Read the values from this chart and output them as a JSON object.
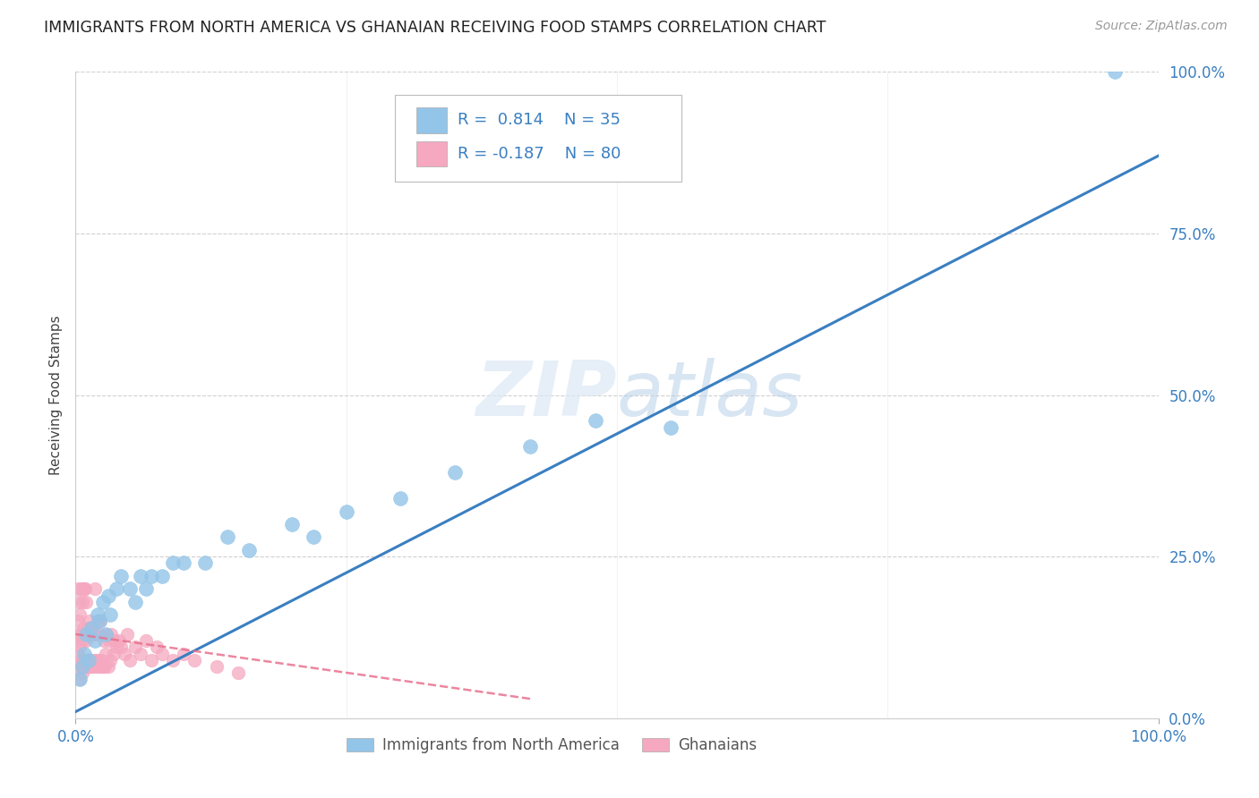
{
  "title": "IMMIGRANTS FROM NORTH AMERICA VS GHANAIAN RECEIVING FOOD STAMPS CORRELATION CHART",
  "source": "Source: ZipAtlas.com",
  "ylabel": "Receiving Food Stamps",
  "xlim": [
    0.0,
    1.0
  ],
  "ylim": [
    0.0,
    1.0
  ],
  "xticks": [
    0.0,
    1.0
  ],
  "yticks": [
    0.0,
    0.25,
    0.5,
    0.75,
    1.0
  ],
  "xtick_labels": [
    "0.0%",
    "100.0%"
  ],
  "ytick_labels": [
    "0.0%",
    "25.0%",
    "50.0%",
    "75.0%",
    "100.0%"
  ],
  "blue_color": "#93c5e8",
  "pink_color": "#f5a8c0",
  "blue_line_color": "#3a7fc1",
  "pink_line_color": "#e8718e",
  "legend_label_blue": "Immigrants from North America",
  "legend_label_pink": "Ghanaians",
  "watermark": "ZIPatlas",
  "background_color": "#ffffff",
  "grid_color": "#d0d0d0",
  "blue_scatter_x": [
    0.004,
    0.006,
    0.008,
    0.01,
    0.012,
    0.015,
    0.018,
    0.02,
    0.022,
    0.025,
    0.028,
    0.03,
    0.032,
    0.038,
    0.042,
    0.05,
    0.055,
    0.06,
    0.065,
    0.07,
    0.08,
    0.09,
    0.1,
    0.12,
    0.14,
    0.16,
    0.2,
    0.22,
    0.25,
    0.3,
    0.35,
    0.42,
    0.48,
    0.55,
    0.96
  ],
  "blue_scatter_y": [
    0.06,
    0.08,
    0.1,
    0.13,
    0.09,
    0.14,
    0.12,
    0.16,
    0.15,
    0.18,
    0.13,
    0.19,
    0.16,
    0.2,
    0.22,
    0.2,
    0.18,
    0.22,
    0.2,
    0.22,
    0.22,
    0.24,
    0.24,
    0.24,
    0.28,
    0.26,
    0.3,
    0.28,
    0.32,
    0.34,
    0.38,
    0.42,
    0.46,
    0.45,
    1.0
  ],
  "pink_scatter_x": [
    0.001,
    0.001,
    0.002,
    0.002,
    0.002,
    0.003,
    0.003,
    0.003,
    0.004,
    0.004,
    0.004,
    0.005,
    0.005,
    0.005,
    0.006,
    0.006,
    0.006,
    0.007,
    0.007,
    0.007,
    0.008,
    0.008,
    0.008,
    0.009,
    0.009,
    0.009,
    0.01,
    0.01,
    0.01,
    0.011,
    0.011,
    0.012,
    0.012,
    0.013,
    0.013,
    0.014,
    0.014,
    0.015,
    0.015,
    0.016,
    0.016,
    0.017,
    0.018,
    0.018,
    0.019,
    0.02,
    0.02,
    0.021,
    0.022,
    0.023,
    0.023,
    0.024,
    0.025,
    0.026,
    0.027,
    0.028,
    0.029,
    0.03,
    0.031,
    0.032,
    0.033,
    0.035,
    0.036,
    0.038,
    0.04,
    0.042,
    0.045,
    0.048,
    0.05,
    0.055,
    0.06,
    0.065,
    0.07,
    0.075,
    0.08,
    0.09,
    0.1,
    0.11,
    0.13,
    0.15
  ],
  "pink_scatter_y": [
    0.08,
    0.12,
    0.1,
    0.15,
    0.2,
    0.08,
    0.13,
    0.18,
    0.06,
    0.11,
    0.16,
    0.09,
    0.13,
    0.2,
    0.07,
    0.12,
    0.18,
    0.09,
    0.14,
    0.2,
    0.08,
    0.13,
    0.2,
    0.08,
    0.13,
    0.2,
    0.08,
    0.12,
    0.18,
    0.09,
    0.14,
    0.08,
    0.13,
    0.09,
    0.15,
    0.08,
    0.13,
    0.08,
    0.13,
    0.09,
    0.14,
    0.08,
    0.13,
    0.2,
    0.09,
    0.08,
    0.15,
    0.09,
    0.13,
    0.08,
    0.15,
    0.09,
    0.08,
    0.12,
    0.08,
    0.1,
    0.13,
    0.08,
    0.12,
    0.09,
    0.13,
    0.1,
    0.12,
    0.11,
    0.12,
    0.11,
    0.1,
    0.13,
    0.09,
    0.11,
    0.1,
    0.12,
    0.09,
    0.11,
    0.1,
    0.09,
    0.1,
    0.09,
    0.08,
    0.07
  ],
  "blue_line_x": [
    0.0,
    1.0
  ],
  "blue_line_y": [
    0.01,
    0.87
  ],
  "pink_line_x": [
    0.0,
    0.42
  ],
  "pink_line_y": [
    0.13,
    0.03
  ],
  "grid_hlines": [
    0.25,
    0.5,
    0.75,
    1.0
  ],
  "grid_vlines": [
    0.25,
    0.5,
    0.75,
    1.0
  ]
}
